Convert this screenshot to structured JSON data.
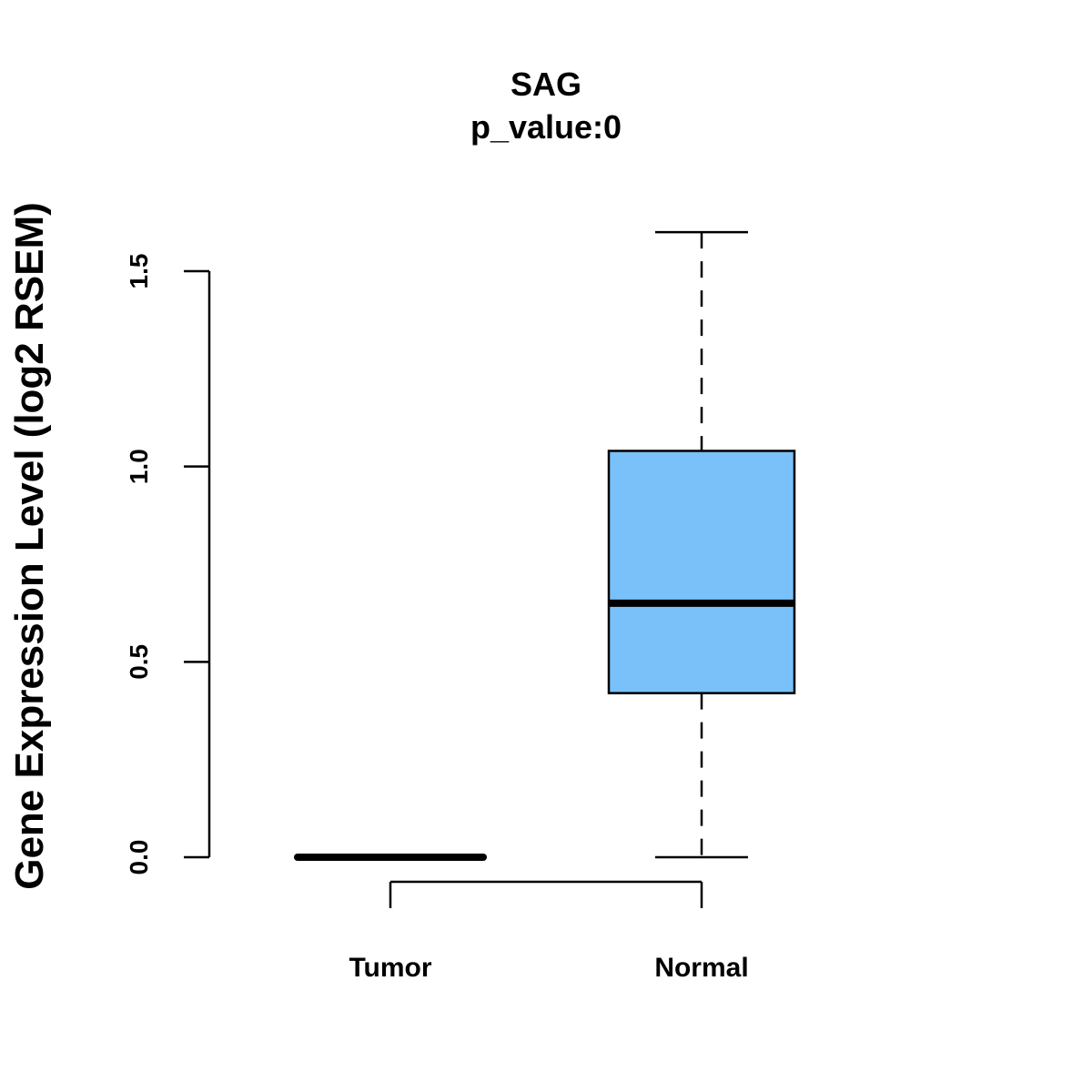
{
  "chart_data": {
    "type": "boxplot",
    "title": "SAG",
    "subtitle": "p_value:0",
    "ylabel": "Gene Expression Level (log2 RSEM)",
    "xlabel": "",
    "ylim": [
      0,
      1.5
    ],
    "yticks": [
      0.0,
      0.5,
      1.0,
      1.5
    ],
    "ytick_labels": [
      "0.0",
      "0.5",
      "1.0",
      "1.5"
    ],
    "categories": [
      "Tumor",
      "Normal"
    ],
    "boxes": [
      {
        "name": "Tumor",
        "min": 0.0,
        "q1": 0.0,
        "median": 0.0,
        "q3": 0.0,
        "max": 0.0,
        "color": "#000000"
      },
      {
        "name": "Normal",
        "min": 0.0,
        "q1": 0.42,
        "median": 0.65,
        "q3": 1.04,
        "max": 1.6,
        "color": "#79C1F8"
      }
    ]
  }
}
